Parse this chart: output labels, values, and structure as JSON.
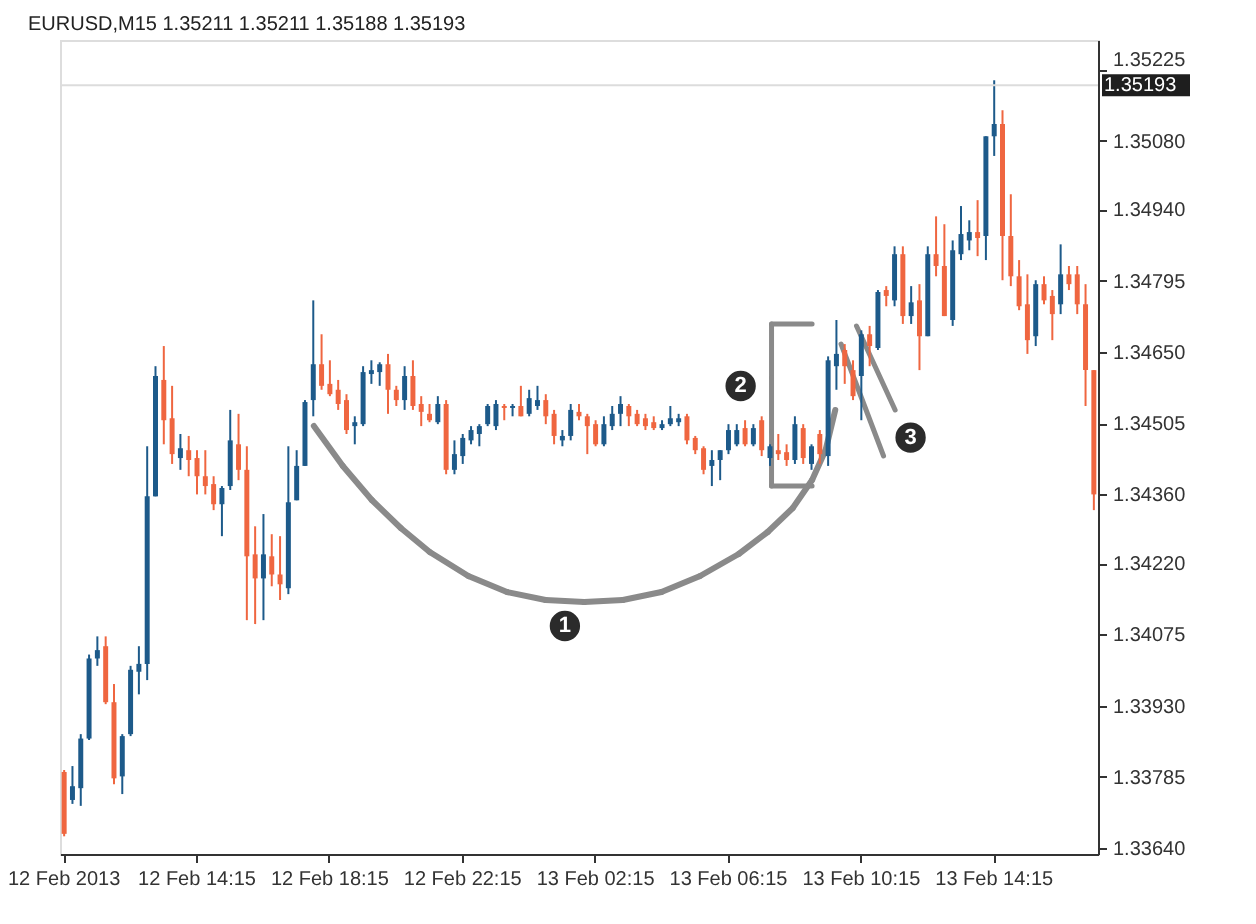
{
  "chart_data": {
    "type": "candlestick",
    "title": "EURUSD,M15  1.35211 1.35211 1.35188 1.35193",
    "categories": [
      "12 Feb 2013",
      null,
      null,
      null,
      null,
      null,
      null,
      null,
      null,
      null,
      null,
      null,
      null,
      null,
      null,
      null,
      "12 Feb 14:15",
      null,
      null,
      null,
      null,
      null,
      null,
      null,
      null,
      null,
      null,
      null,
      null,
      null,
      null,
      null,
      "12 Feb 18:15",
      null,
      null,
      null,
      null,
      null,
      null,
      null,
      null,
      null,
      null,
      null,
      null,
      null,
      null,
      null,
      "12 Feb 22:15",
      null,
      null,
      null,
      null,
      null,
      null,
      null,
      null,
      null,
      null,
      null,
      null,
      null,
      null,
      null,
      "13 Feb 02:15",
      null,
      null,
      null,
      null,
      null,
      null,
      null,
      null,
      null,
      null,
      null,
      null,
      null,
      null,
      null,
      "13 Feb 06:15",
      null,
      null,
      null,
      null,
      null,
      null,
      null,
      null,
      null,
      null,
      null,
      null,
      null,
      null,
      null,
      "13 Feb 10:15",
      null,
      null,
      null,
      null,
      null,
      null,
      null,
      null,
      null,
      null,
      null,
      null,
      null,
      null,
      null,
      "13 Feb 14:15",
      null,
      null,
      null,
      null,
      null,
      null,
      null,
      null,
      null,
      null,
      null,
      null
    ],
    "ohlc": [
      [
        1.33795,
        1.33799,
        1.33664,
        1.33669
      ],
      [
        1.33738,
        1.33807,
        1.3373,
        1.33766
      ],
      [
        1.33762,
        1.33872,
        1.33726,
        1.33863
      ],
      [
        1.33863,
        1.34034,
        1.3386,
        1.34026
      ],
      [
        1.34026,
        1.34071,
        1.34011,
        1.34043
      ],
      [
        1.34051,
        1.34071,
        1.33933,
        1.33937
      ],
      [
        1.33937,
        1.33974,
        1.3377,
        1.33782
      ],
      [
        1.33786,
        1.33872,
        1.3375,
        1.33868
      ],
      [
        1.33872,
        1.34011,
        1.33868,
        1.34003
      ],
      [
        1.33999,
        1.34051,
        1.33953,
        1.34015
      ],
      [
        1.34015,
        1.34458,
        1.33982,
        1.34356
      ],
      [
        1.34356,
        1.34621,
        1.34356,
        1.34601
      ],
      [
        1.34593,
        1.34662,
        1.34462,
        1.34511
      ],
      [
        1.34515,
        1.34581,
        1.34422,
        1.34442
      ],
      [
        1.34434,
        1.34483,
        1.3441,
        1.34454
      ],
      [
        1.3445,
        1.34479,
        1.34397,
        1.3443
      ],
      [
        1.34434,
        1.3445,
        1.3436,
        1.34397
      ],
      [
        1.34397,
        1.3445,
        1.3436,
        1.34377
      ],
      [
        1.34381,
        1.34397,
        1.34328,
        1.3434
      ],
      [
        1.3434,
        1.34377,
        1.34275,
        1.34373
      ],
      [
        1.34377,
        1.34532,
        1.34369,
        1.3447
      ],
      [
        1.34462,
        1.34524,
        1.34389,
        1.3441
      ],
      [
        1.3441,
        1.34458,
        1.34104,
        1.34234
      ],
      [
        1.34238,
        1.34295,
        1.34096,
        1.34189
      ],
      [
        1.34189,
        1.3432,
        1.34104,
        1.34238
      ],
      [
        1.34234,
        1.34279,
        1.34173,
        1.34197
      ],
      [
        1.34197,
        1.34275,
        1.34145,
        1.34177
      ],
      [
        1.34169,
        1.34458,
        1.34157,
        1.34344
      ],
      [
        1.34348,
        1.3445,
        1.34348,
        1.34418
      ],
      [
        1.34418,
        1.34552,
        1.34418,
        1.34548
      ],
      [
        1.34552,
        1.34755,
        1.34519,
        1.34625
      ],
      [
        1.34625,
        1.34686,
        1.34573,
        1.34581
      ],
      [
        1.34585,
        1.34633,
        1.3456,
        1.34564
      ],
      [
        1.34573,
        1.34593,
        1.34532,
        1.34544
      ],
      [
        1.34552,
        1.34564,
        1.34483,
        1.34491
      ],
      [
        1.34499,
        1.34519,
        1.34462,
        1.34507
      ],
      [
        1.34503,
        1.34621,
        1.34499,
        1.34609
      ],
      [
        1.34605,
        1.34633,
        1.34585,
        1.34613
      ],
      [
        1.34609,
        1.34629,
        1.34581,
        1.34625
      ],
      [
        1.34625,
        1.34646,
        1.34524,
        1.34573
      ],
      [
        1.34573,
        1.34581,
        1.3454,
        1.34552
      ],
      [
        1.34552,
        1.34621,
        1.34532,
        1.34601
      ],
      [
        1.34601,
        1.34633,
        1.34532,
        1.3454
      ],
      [
        1.34544,
        1.3456,
        1.34499,
        1.34528
      ],
      [
        1.34524,
        1.34544,
        1.34507,
        1.34511
      ],
      [
        1.34507,
        1.3456,
        1.34503,
        1.34544
      ],
      [
        1.34544,
        1.34552,
        1.34401,
        1.3441
      ],
      [
        1.3441,
        1.3447,
        1.34401,
        1.34442
      ],
      [
        1.34438,
        1.34483,
        1.34422,
        1.34475
      ],
      [
        1.3447,
        1.34499,
        1.34462,
        1.34491
      ],
      [
        1.34483,
        1.34503,
        1.34458,
        1.34499
      ],
      [
        1.34503,
        1.34544,
        1.34499,
        1.3454
      ],
      [
        1.34499,
        1.34552,
        1.34491,
        1.34544
      ],
      [
        1.3454,
        1.34544,
        1.34511,
        1.34536
      ],
      [
        1.34536,
        1.34544,
        1.34519,
        1.3454
      ],
      [
        1.3454,
        1.34581,
        1.34519,
        1.34519
      ],
      [
        1.34524,
        1.34573,
        1.34519,
        1.34556
      ],
      [
        1.3454,
        1.34581,
        1.34532,
        1.34552
      ],
      [
        1.34552,
        1.34564,
        1.34503,
        1.34519
      ],
      [
        1.34524,
        1.34532,
        1.34462,
        1.34479
      ],
      [
        1.3447,
        1.34491,
        1.34458,
        1.34479
      ],
      [
        1.34479,
        1.34544,
        1.3447,
        1.34532
      ],
      [
        1.34528,
        1.34544,
        1.34511,
        1.34519
      ],
      [
        1.34519,
        1.34524,
        1.34442,
        1.34499
      ],
      [
        1.34503,
        1.34511,
        1.34458,
        1.34462
      ],
      [
        1.34462,
        1.34519,
        1.34458,
        1.34503
      ],
      [
        1.34499,
        1.3454,
        1.34491,
        1.34524
      ],
      [
        1.34524,
        1.3456,
        1.34499,
        1.34544
      ],
      [
        1.3454,
        1.34544,
        1.34499,
        1.34519
      ],
      [
        1.34524,
        1.34532,
        1.34499,
        1.34503
      ],
      [
        1.34515,
        1.34524,
        1.34491,
        1.34499
      ],
      [
        1.34507,
        1.34519,
        1.34491,
        1.34495
      ],
      [
        1.34495,
        1.34511,
        1.34491,
        1.34503
      ],
      [
        1.34503,
        1.3454,
        1.34499,
        1.34515
      ],
      [
        1.34507,
        1.34524,
        1.34499,
        1.34515
      ],
      [
        1.34519,
        1.34524,
        1.34462,
        1.3447
      ],
      [
        1.34475,
        1.34479,
        1.34442,
        1.3445
      ],
      [
        1.34454,
        1.34458,
        1.34401,
        1.3441
      ],
      [
        1.34418,
        1.3445,
        1.34377,
        1.3443
      ],
      [
        1.3443,
        1.3445,
        1.34389,
        1.3445
      ],
      [
        1.3445,
        1.34503,
        1.34442,
        1.34491
      ],
      [
        1.34462,
        1.34503,
        1.34458,
        1.34491
      ],
      [
        1.34495,
        1.34511,
        1.34458,
        1.34462
      ],
      [
        1.34462,
        1.34503,
        1.34458,
        1.34495
      ],
      [
        1.34511,
        1.34519,
        1.34438,
        1.3445
      ],
      [
        1.34434,
        1.34462,
        1.34418,
        1.34458
      ],
      [
        1.3445,
        1.34483,
        1.3443,
        1.34442
      ],
      [
        1.34446,
        1.34462,
        1.34418,
        1.3443
      ],
      [
        1.3443,
        1.34519,
        1.34422,
        1.34503
      ],
      [
        1.34495,
        1.34503,
        1.34422,
        1.34434
      ],
      [
        1.34422,
        1.34462,
        1.3441,
        1.34458
      ],
      [
        1.34483,
        1.34491,
        1.34422,
        1.34442
      ],
      [
        1.34438,
        1.34641,
        1.34418,
        1.34633
      ],
      [
        1.34621,
        1.34715,
        1.34573,
        1.34646
      ],
      [
        1.34654,
        1.34666,
        1.34585,
        1.34621
      ],
      [
        1.34613,
        1.34633,
        1.34552,
        1.3456
      ],
      [
        1.34601,
        1.34694,
        1.34511,
        1.34686
      ],
      [
        1.34686,
        1.34703,
        1.34621,
        1.34662
      ],
      [
        1.34658,
        1.34776,
        1.34654,
        1.34772
      ],
      [
        1.34776,
        1.34784,
        1.34743,
        1.34764
      ],
      [
        1.34755,
        1.34865,
        1.34743,
        1.34849
      ],
      [
        1.34849,
        1.34865,
        1.34707,
        1.34723
      ],
      [
        1.34723,
        1.34784,
        1.34707,
        1.34751
      ],
      [
        1.34755,
        1.34788,
        1.34613,
        1.34682
      ],
      [
        1.34682,
        1.34865,
        1.34682,
        1.34849
      ],
      [
        1.34849,
        1.34926,
        1.34804,
        1.34825
      ],
      [
        1.34825,
        1.3491,
        1.34723,
        1.34723
      ],
      [
        1.34715,
        1.34877,
        1.34703,
        1.34857
      ],
      [
        1.34849,
        1.34947,
        1.34837,
        1.3489
      ],
      [
        1.34877,
        1.34918,
        1.34857,
        1.34894
      ],
      [
        1.34894,
        1.34959,
        1.34845,
        1.34882
      ],
      [
        1.34886,
        1.35089,
        1.34837,
        1.35089
      ],
      [
        1.35089,
        1.35203,
        1.35049,
        1.35114
      ],
      [
        1.35114,
        1.35142,
        1.34796,
        1.34886
      ],
      [
        1.34886,
        1.34971,
        1.34784,
        1.34804
      ],
      [
        1.34804,
        1.34837,
        1.34735,
        1.34743
      ],
      [
        1.34747,
        1.34808,
        1.34646,
        1.34674
      ],
      [
        1.34682,
        1.34796,
        1.34662,
        1.34788
      ],
      [
        1.34788,
        1.34804,
        1.34747,
        1.34755
      ],
      [
        1.34764,
        1.34776,
        1.34674,
        1.34727
      ],
      [
        1.34747,
        1.34869,
        1.34727,
        1.34808
      ],
      [
        1.34808,
        1.34825,
        1.34776,
        1.34788
      ],
      [
        1.34808,
        1.34825,
        1.34727,
        1.34747
      ],
      [
        1.34747,
        1.34788,
        1.3454,
        1.34613
      ],
      [
        1.34613,
        1.34613,
        1.34328,
        1.3436
      ]
    ],
    "colors": [
      "#ef6640",
      "#1d5a8a",
      "#1d5a8a",
      "#1d5a8a",
      "#1d5a8a",
      "#ef6640",
      "#ef6640",
      "#1d5a8a",
      "#1d5a8a",
      "#1d5a8a",
      "#1d5a8a",
      "#1d5a8a",
      "#ef6640",
      "#ef6640",
      "#1d5a8a",
      "#ef6640",
      "#ef6640",
      "#ef6640",
      "#ef6640",
      "#1d5a8a",
      "#1d5a8a",
      "#ef6640",
      "#ef6640",
      "#ef6640",
      "#1d5a8a",
      "#ef6640",
      "#ef6640",
      "#1d5a8a",
      "#1d5a8a",
      "#1d5a8a",
      "#1d5a8a",
      "#ef6640",
      "#ef6640",
      "#ef6640",
      "#ef6640",
      "#1d5a8a",
      "#1d5a8a",
      "#1d5a8a",
      "#1d5a8a",
      "#ef6640",
      "#ef6640",
      "#1d5a8a",
      "#ef6640",
      "#ef6640",
      "#ef6640",
      "#1d5a8a",
      "#ef6640",
      "#1d5a8a",
      "#1d5a8a",
      "#1d5a8a",
      "#1d5a8a",
      "#1d5a8a",
      "#1d5a8a",
      "#ef6640",
      "#1d5a8a",
      "#ef6640",
      "#1d5a8a",
      "#1d5a8a",
      "#ef6640",
      "#ef6640",
      "#1d5a8a",
      "#1d5a8a",
      "#ef6640",
      "#ef6640",
      "#ef6640",
      "#1d5a8a",
      "#1d5a8a",
      "#1d5a8a",
      "#ef6640",
      "#ef6640",
      "#ef6640",
      "#ef6640",
      "#1d5a8a",
      "#1d5a8a",
      "#1d5a8a",
      "#ef6640",
      "#ef6640",
      "#ef6640",
      "#1d5a8a",
      "#1d5a8a",
      "#1d5a8a",
      "#1d5a8a",
      "#ef6640",
      "#1d5a8a",
      "#ef6640",
      "#1d5a8a",
      "#ef6640",
      "#ef6640",
      "#1d5a8a",
      "#ef6640",
      "#1d5a8a",
      "#ef6640",
      "#1d5a8a",
      "#1d5a8a",
      "#ef6640",
      "#ef6640",
      "#1d5a8a",
      "#ef6640",
      "#1d5a8a",
      "#ef6640",
      "#1d5a8a",
      "#ef6640",
      "#1d5a8a",
      "#ef6640",
      "#1d5a8a",
      "#ef6640",
      "#ef6640",
      "#1d5a8a",
      "#1d5a8a",
      "#1d5a8a",
      "#ef6640",
      "#1d5a8a",
      "#1d5a8a",
      "#ef6640",
      "#ef6640",
      "#ef6640",
      "#ef6640",
      "#1d5a8a",
      "#ef6640",
      "#ef6640",
      "#1d5a8a",
      "#ef6640",
      "#ef6640",
      "#ef6640",
      "#ef6640"
    ],
    "ylim": [
      1.33628,
      1.35285
    ],
    "yticks": [
      {
        "value": 1.3364,
        "label": "1.33640"
      },
      1.33785,
      {
        "value": 1.3393,
        "label": "1.33930"
      },
      1.34075,
      {
        "value": 1.3422,
        "label": "1.34220"
      },
      {
        "value": 1.3436,
        "label": "1.34360"
      },
      1.34505,
      {
        "value": 1.3465,
        "label": "1.34650"
      },
      1.34795,
      {
        "value": 1.3494,
        "label": "1.34940"
      },
      {
        "value": 1.3508,
        "label": "1.35080"
      },
      1.35225
    ],
    "ref_lines": [
      {
        "axis": "y",
        "value": 1.35193,
        "label": "1.35193",
        "color": "#dcdcdc"
      }
    ],
    "annotations": [
      "1",
      "2",
      {
        "text": "3",
        "y": 1.3461
      }
    ]
  }
}
